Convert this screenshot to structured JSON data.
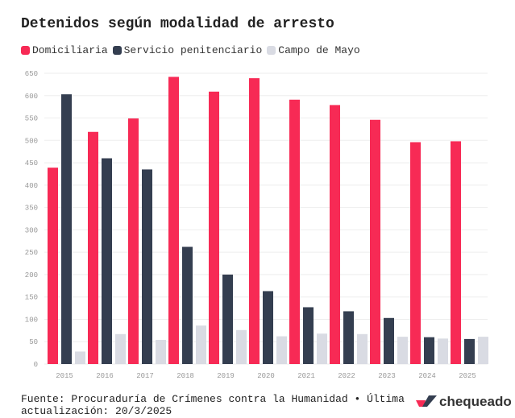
{
  "chart_data": {
    "type": "bar",
    "title": "Detenidos según modalidad de arresto",
    "categories": [
      "2015",
      "2016",
      "2017",
      "2018",
      "2019",
      "2020",
      "2021",
      "2022",
      "2023",
      "2024",
      "2025"
    ],
    "series": [
      {
        "name": "Domiciliaria",
        "color": "#f72a55",
        "values": [
          439,
          519,
          549,
          642,
          609,
          639,
          591,
          579,
          546,
          496,
          498
        ]
      },
      {
        "name": "Servicio penitenciario",
        "color": "#343e50",
        "values": [
          603,
          460,
          435,
          262,
          200,
          163,
          127,
          118,
          103,
          60,
          56
        ]
      },
      {
        "name": "Campo de Mayo",
        "color": "#d9dbe3",
        "values": [
          28,
          67,
          54,
          86,
          76,
          62,
          68,
          67,
          61,
          57,
          61
        ]
      }
    ],
    "ylim": [
      0,
      650
    ],
    "yticks": [
      "0",
      "50",
      "100",
      "150",
      "200",
      "250",
      "300",
      "350",
      "400",
      "450",
      "500",
      "550",
      "600",
      "650"
    ],
    "grid": true,
    "legend": "top-left"
  },
  "source": "Fuente: Procuraduría de Crímenes contra la Humanidad • Última actualización: 20/3/2025",
  "logo": "chequeado"
}
